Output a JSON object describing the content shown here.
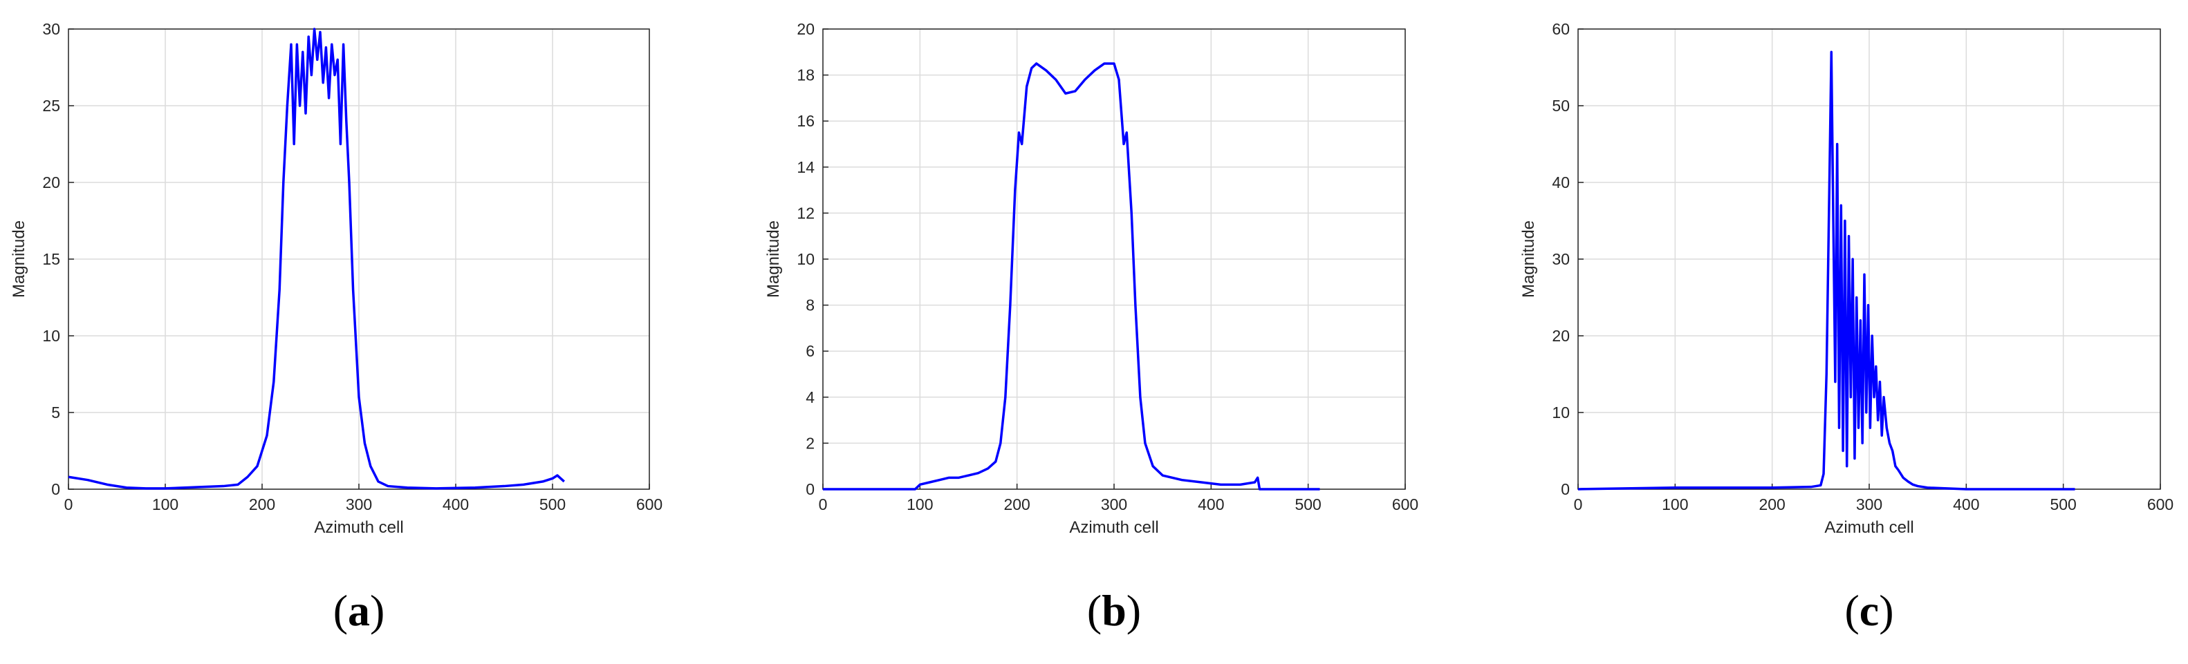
{
  "chart_data": [
    {
      "panel": "(a)",
      "panel_letter": "a",
      "type": "line",
      "xlabel": "Azimuth cell",
      "ylabel": "Magnitude",
      "xlim": [
        0,
        600
      ],
      "ylim": [
        0,
        30
      ],
      "xticks": [
        0,
        100,
        200,
        300,
        400,
        500,
        600
      ],
      "yticks": [
        0,
        5,
        10,
        15,
        20,
        25,
        30
      ],
      "grid": true,
      "series_color": "#0000ff",
      "x": [
        0,
        20,
        40,
        60,
        80,
        100,
        120,
        140,
        160,
        175,
        185,
        195,
        205,
        212,
        218,
        222,
        226,
        230,
        233,
        236,
        239,
        242,
        245,
        248,
        251,
        254,
        257,
        260,
        263,
        266,
        269,
        272,
        275,
        278,
        281,
        284,
        287,
        290,
        294,
        300,
        306,
        312,
        320,
        330,
        350,
        380,
        420,
        450,
        470,
        490,
        500,
        505,
        512
      ],
      "y": [
        0.8,
        0.6,
        0.3,
        0.1,
        0.05,
        0.05,
        0.1,
        0.15,
        0.2,
        0.3,
        0.8,
        1.5,
        3.5,
        7,
        13,
        20,
        25,
        29,
        22.5,
        29,
        25,
        28.5,
        24.5,
        29.5,
        27,
        30,
        28,
        29.8,
        26.5,
        28.8,
        25.5,
        29,
        27,
        28,
        22.5,
        29,
        24,
        20,
        13,
        6,
        3,
        1.5,
        0.5,
        0.2,
        0.1,
        0.05,
        0.1,
        0.2,
        0.3,
        0.5,
        0.7,
        0.9,
        0.5
      ]
    },
    {
      "panel": "(b)",
      "panel_letter": "b",
      "type": "line",
      "xlabel": "Azimuth cell",
      "ylabel": "Magnitude",
      "xlim": [
        0,
        600
      ],
      "ylim": [
        0,
        20
      ],
      "xticks": [
        0,
        100,
        200,
        300,
        400,
        500,
        600
      ],
      "yticks": [
        0,
        2,
        4,
        6,
        8,
        10,
        12,
        14,
        16,
        18,
        20
      ],
      "grid": true,
      "series_color": "#0000ff",
      "x": [
        0,
        50,
        95,
        100,
        110,
        120,
        130,
        140,
        150,
        160,
        170,
        178,
        183,
        188,
        193,
        198,
        202,
        205,
        210,
        215,
        220,
        230,
        240,
        250,
        260,
        270,
        280,
        290,
        300,
        305,
        310,
        313,
        318,
        322,
        327,
        332,
        340,
        350,
        370,
        390,
        410,
        430,
        445,
        448,
        450,
        500,
        512
      ],
      "y": [
        0,
        0,
        0,
        0.2,
        0.3,
        0.4,
        0.5,
        0.5,
        0.6,
        0.7,
        0.9,
        1.2,
        2,
        4,
        8,
        13,
        15.5,
        15,
        17.5,
        18.3,
        18.5,
        18.2,
        17.8,
        17.2,
        17.3,
        17.8,
        18.2,
        18.5,
        18.5,
        17.8,
        15,
        15.5,
        12,
        8,
        4,
        2,
        1,
        0.6,
        0.4,
        0.3,
        0.2,
        0.2,
        0.3,
        0.5,
        0,
        0,
        0
      ]
    },
    {
      "panel": "(c)",
      "panel_letter": "c",
      "type": "line",
      "xlabel": "Azimuth cell",
      "ylabel": "Magnitude",
      "xlim": [
        0,
        600
      ],
      "ylim": [
        0,
        60
      ],
      "xticks": [
        0,
        100,
        200,
        300,
        400,
        500,
        600
      ],
      "yticks": [
        0,
        10,
        20,
        30,
        40,
        50,
        60
      ],
      "grid": true,
      "series_color": "#0000ff",
      "x": [
        0,
        100,
        200,
        240,
        250,
        253,
        256,
        259,
        261,
        263,
        265,
        267,
        269,
        271,
        273,
        275,
        277,
        279,
        281,
        283,
        285,
        287,
        289,
        291,
        293,
        295,
        297,
        299,
        301,
        303,
        305,
        307,
        309,
        311,
        313,
        315,
        318,
        321,
        324,
        327,
        330,
        335,
        340,
        345,
        350,
        360,
        380,
        400,
        450,
        512
      ],
      "y": [
        0,
        0.2,
        0.2,
        0.3,
        0.5,
        2,
        15,
        40,
        57,
        35,
        14,
        45,
        8,
        37,
        5,
        35,
        3,
        33,
        12,
        30,
        4,
        25,
        8,
        22,
        6,
        28,
        10,
        24,
        8,
        20,
        12,
        16,
        9,
        14,
        7,
        12,
        8,
        6,
        5,
        3,
        2.5,
        1.5,
        1,
        0.6,
        0.4,
        0.2,
        0.1,
        0,
        0,
        0
      ]
    }
  ]
}
